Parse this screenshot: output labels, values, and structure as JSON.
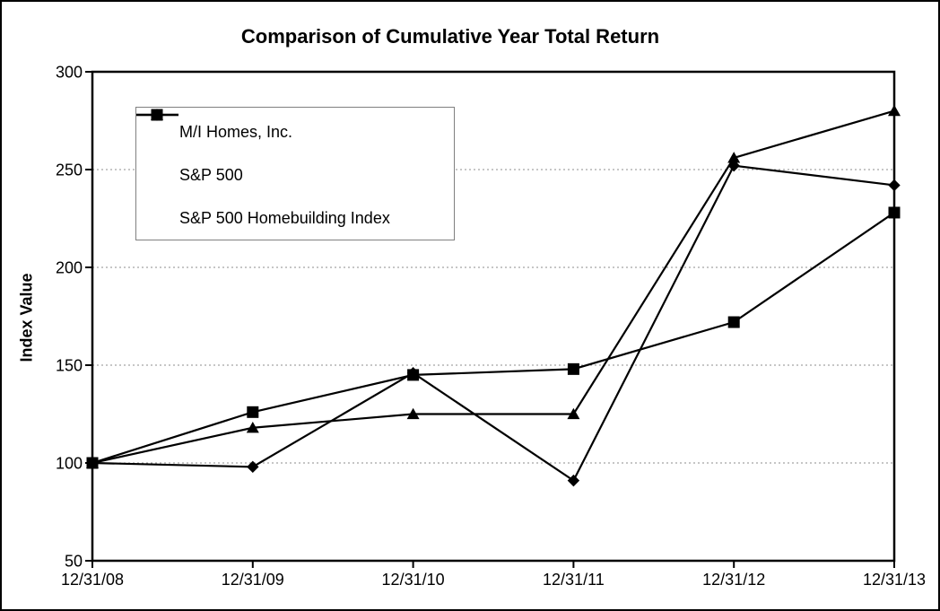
{
  "chart_data": {
    "type": "line",
    "title": "Comparison of Cumulative Year Total Return",
    "xlabel": "",
    "ylabel": "Index Value",
    "categories": [
      "12/31/08",
      "12/31/09",
      "12/31/10",
      "12/31/11",
      "12/31/12",
      "12/31/13"
    ],
    "series": [
      {
        "name": "M/I Homes, Inc.",
        "marker": "diamond",
        "values": [
          100,
          98,
          146,
          91,
          252,
          242
        ]
      },
      {
        "name": "S&P 500",
        "marker": "square",
        "values": [
          100,
          126,
          145,
          148,
          172,
          228
        ]
      },
      {
        "name": "S&P 500 Homebuilding Index",
        "marker": "triangle",
        "values": [
          100,
          118,
          125,
          125,
          256,
          280
        ]
      }
    ],
    "ylim": [
      50,
      300
    ],
    "ytick_step": 50,
    "ytick_labels": [
      "50",
      "100",
      "150",
      "200",
      "250",
      "300"
    ],
    "grid": "horizontal-dashed",
    "legend_position": "top-left-inside",
    "colors": {
      "series": "#000000",
      "frame": "#000000",
      "grid": "#8c8c8c",
      "legend_border": "#808080",
      "background": "#ffffff",
      "text": "#000000"
    }
  }
}
